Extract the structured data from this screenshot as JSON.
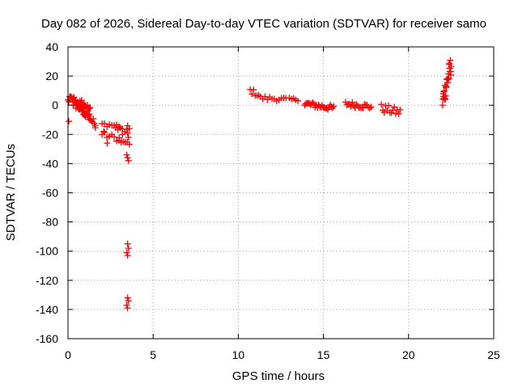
{
  "chart_data": {
    "type": "scatter",
    "title": "Day 082 of 2026, Sidereal Day-to-day VTEC variation (SDTVAR) for receiver samo",
    "xlabel": "GPS time / hours",
    "ylabel": "SDTVAR / TECUs",
    "xlim": [
      0,
      25
    ],
    "ylim": [
      -160,
      40
    ],
    "xticks": [
      0,
      5,
      10,
      15,
      20,
      25
    ],
    "yticks": [
      -160,
      -140,
      -120,
      -100,
      -80,
      -60,
      -40,
      -20,
      0,
      20,
      40
    ],
    "grid": true,
    "marker": "+",
    "colors": {
      "points": "#ff0000",
      "grid": "#a0a0a0",
      "axis": "#000000"
    },
    "segments": [
      {
        "x0": 0.0,
        "x1": 0.35,
        "y0": 3,
        "y1": 4,
        "n": 8,
        "spread": 2
      },
      {
        "x0": 0.1,
        "x1": 0.5,
        "y0": 5,
        "y1": 3,
        "n": 8,
        "spread": 2
      },
      {
        "x0": 0.3,
        "x1": 1.3,
        "y0": 2,
        "y1": -8,
        "n": 24,
        "spread": 3
      },
      {
        "x0": 0.5,
        "x1": 1.6,
        "y0": 1,
        "y1": -13,
        "n": 20,
        "spread": 2.5
      },
      {
        "x0": 0.7,
        "x1": 1.3,
        "y0": 4,
        "y1": -3,
        "n": 12,
        "spread": 2
      },
      {
        "x0": 2.0,
        "x1": 3.0,
        "y0": -13,
        "y1": -14,
        "n": 8,
        "spread": 1.5
      },
      {
        "x0": 2.0,
        "x1": 3.0,
        "y0": -20,
        "y1": -23,
        "n": 8,
        "spread": 2
      },
      {
        "x0": 2.8,
        "x1": 3.6,
        "y0": -16,
        "y1": -18,
        "n": 7,
        "spread": 2
      },
      {
        "x0": 3.0,
        "x1": 3.6,
        "y0": -24,
        "y1": -27,
        "n": 6,
        "spread": 1.5
      },
      {
        "x0": 10.7,
        "x1": 11.2,
        "y0": 10,
        "y1": 7,
        "n": 6,
        "spread": 2
      },
      {
        "x0": 11.3,
        "x1": 12.8,
        "y0": 5,
        "y1": 4,
        "n": 12,
        "spread": 1.5
      },
      {
        "x0": 13.0,
        "x1": 13.5,
        "y0": 4,
        "y1": 4,
        "n": 5,
        "spread": 1
      },
      {
        "x0": 13.9,
        "x1": 15.6,
        "y0": 1,
        "y1": -2,
        "n": 26,
        "spread": 2
      },
      {
        "x0": 16.3,
        "x1": 17.8,
        "y0": 1,
        "y1": -1,
        "n": 20,
        "spread": 2
      },
      {
        "x0": 18.4,
        "x1": 19.5,
        "y0": -2,
        "y1": -5,
        "n": 14,
        "spread": 3
      },
      {
        "x0": 22.0,
        "x1": 22.5,
        "y0": 3,
        "y1": 28,
        "n": 30,
        "spread": 7
      }
    ],
    "points": [
      [
        0.05,
        -11
      ],
      [
        1.6,
        -14
      ],
      [
        2.3,
        -26
      ],
      [
        2.1,
        -18
      ],
      [
        3.2,
        -20
      ],
      [
        3.5,
        -14
      ],
      [
        3.5,
        -19
      ],
      [
        3.55,
        -22
      ],
      [
        3.45,
        -34
      ],
      [
        3.5,
        -36
      ],
      [
        3.55,
        -38
      ],
      [
        3.5,
        -95
      ],
      [
        3.55,
        -98
      ],
      [
        3.45,
        -101
      ],
      [
        3.5,
        -103
      ],
      [
        3.5,
        -132
      ],
      [
        3.55,
        -134
      ],
      [
        3.45,
        -137
      ],
      [
        3.5,
        -139
      ]
    ]
  }
}
